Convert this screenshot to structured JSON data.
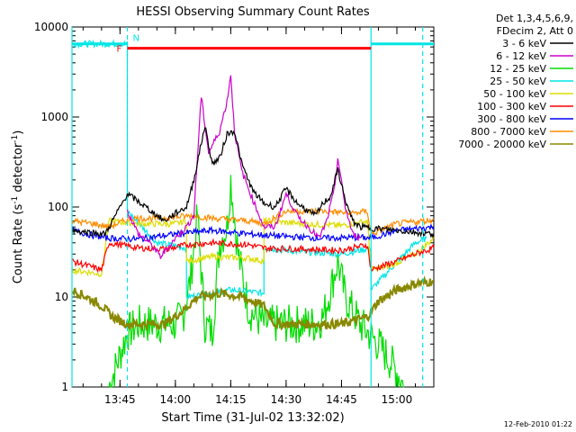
{
  "chart_data": {
    "type": "line",
    "title": "HESSI Observing Summary Count Rates",
    "xlabel": "Start Time (31-Jul-02 13:32:02)",
    "ylabel_main": "Count Rate (s",
    "ylabel_sup1": "-1",
    "ylabel_mid": " detector",
    "ylabel_sup2": "-1",
    "ylabel_end": ")",
    "y_scale": "log",
    "ylim": [
      1,
      10000
    ],
    "xlim": [
      "13:32",
      "15:10"
    ],
    "x_ticks": [
      {
        "t": "13:45",
        "label": "13:45"
      },
      {
        "t": "14:00",
        "label": "14:00"
      },
      {
        "t": "14:15",
        "label": "14:15"
      },
      {
        "t": "14:30",
        "label": "14:30"
      },
      {
        "t": "14:45",
        "label": "14:45"
      },
      {
        "t": "15:00",
        "label": "15:00"
      }
    ],
    "y_ticks": [
      {
        "v": 1,
        "label": "1"
      },
      {
        "v": 10,
        "label": "10"
      },
      {
        "v": 100,
        "label": "100"
      },
      {
        "v": 1000,
        "label": "1000"
      },
      {
        "v": 10000,
        "label": "10000"
      }
    ],
    "legend_header": [
      "Det 1,3,4,5,6,9,",
      "FDecim 2, Att 0"
    ],
    "legend_placement": "right",
    "series": [
      {
        "name": "3 - 6 keV",
        "color": "#000000",
        "points": [
          [
            "13:32",
            55
          ],
          [
            "13:41",
            50
          ],
          [
            "13:47",
            140
          ],
          [
            "13:52",
            100
          ],
          [
            "13:57",
            70
          ],
          [
            "14:00",
            85
          ],
          [
            "14:03",
            100
          ],
          [
            "14:05",
            200
          ],
          [
            "14:08",
            800
          ],
          [
            "14:10",
            300
          ],
          [
            "14:12",
            350
          ],
          [
            "14:14",
            650
          ],
          [
            "14:16",
            700
          ],
          [
            "14:18",
            300
          ],
          [
            "14:21",
            150
          ],
          [
            "14:24",
            110
          ],
          [
            "14:27",
            100
          ],
          [
            "14:30",
            160
          ],
          [
            "14:33",
            110
          ],
          [
            "14:36",
            90
          ],
          [
            "14:38",
            80
          ],
          [
            "14:40",
            110
          ],
          [
            "14:42",
            130
          ],
          [
            "14:44",
            260
          ],
          [
            "14:46",
            120
          ],
          [
            "14:48",
            70
          ],
          [
            "14:50",
            60
          ],
          [
            "15:00",
            55
          ],
          [
            "15:10",
            50
          ]
        ]
      },
      {
        "name": "6 - 12 keV",
        "color": "#cc00cc",
        "points": [
          [
            "13:47",
            90
          ],
          [
            "13:50",
            50
          ],
          [
            "13:53",
            40
          ],
          [
            "13:56",
            28
          ],
          [
            "14:00",
            45
          ],
          [
            "14:03",
            60
          ],
          [
            "14:05",
            80
          ],
          [
            "14:07",
            1700
          ],
          [
            "14:09",
            400
          ],
          [
            "14:12",
            700
          ],
          [
            "14:14",
            1500
          ],
          [
            "14:15",
            3000
          ],
          [
            "14:16",
            700
          ],
          [
            "14:18",
            250
          ],
          [
            "14:21",
            120
          ],
          [
            "14:24",
            60
          ],
          [
            "14:27",
            60
          ],
          [
            "14:30",
            140
          ],
          [
            "14:33",
            80
          ],
          [
            "14:36",
            60
          ],
          [
            "14:39",
            45
          ],
          [
            "14:41",
            70
          ],
          [
            "14:43",
            150
          ],
          [
            "14:44",
            350
          ],
          [
            "14:46",
            100
          ],
          [
            "14:48",
            50
          ],
          [
            "14:50",
            45
          ]
        ]
      },
      {
        "name": "12 - 25 keV",
        "color": "#00dd00",
        "points": [
          [
            "13:42",
            1
          ],
          [
            "13:47",
            4
          ],
          [
            "13:50",
            5
          ],
          [
            "14:00",
            5
          ],
          [
            "14:02",
            6
          ],
          [
            "14:04",
            15
          ],
          [
            "14:06",
            80
          ],
          [
            "14:08",
            5
          ],
          [
            "14:10",
            4
          ],
          [
            "14:12",
            40
          ],
          [
            "14:14",
            60
          ],
          [
            "14:15",
            200
          ],
          [
            "14:17",
            30
          ],
          [
            "14:20",
            7
          ],
          [
            "14:24",
            5
          ],
          [
            "14:30",
            5
          ],
          [
            "14:38",
            5
          ],
          [
            "14:40",
            6
          ],
          [
            "14:42",
            12
          ],
          [
            "14:44",
            25
          ],
          [
            "14:46",
            10
          ],
          [
            "14:50",
            5
          ],
          [
            "14:55",
            3
          ],
          [
            "15:00",
            1.5
          ],
          [
            "15:02",
            1
          ]
        ]
      },
      {
        "name": "25 - 50 keV",
        "color": "#00e6e6",
        "points": [
          [
            "13:32",
            6500
          ],
          [
            "13:47",
            6500
          ],
          [
            "13:47",
            90
          ],
          [
            "13:55",
            40
          ],
          [
            "14:03",
            35
          ],
          [
            "14:03",
            10
          ],
          [
            "14:10",
            11
          ],
          [
            "14:15",
            12
          ],
          [
            "14:24",
            11
          ],
          [
            "14:24",
            35
          ],
          [
            "14:33",
            32
          ],
          [
            "14:45",
            30
          ],
          [
            "14:53",
            35
          ],
          [
            "14:53",
            12
          ],
          [
            "14:58",
            20
          ],
          [
            "15:05",
            40
          ],
          [
            "15:08",
            45
          ]
        ]
      },
      {
        "name": "50 - 100 keV",
        "color": "#dddd00",
        "points": [
          [
            "13:32",
            20
          ],
          [
            "13:40",
            18
          ],
          [
            "13:42",
            70
          ],
          [
            "13:50",
            65
          ],
          [
            "14:00",
            65
          ],
          [
            "14:03",
            70
          ],
          [
            "14:03",
            25
          ],
          [
            "14:10",
            28
          ],
          [
            "14:20",
            27
          ],
          [
            "14:24",
            25
          ],
          [
            "14:24",
            70
          ],
          [
            "14:35",
            65
          ],
          [
            "14:45",
            62
          ],
          [
            "14:52",
            70
          ],
          [
            "14:53",
            20
          ],
          [
            "14:58",
            22
          ],
          [
            "15:05",
            30
          ],
          [
            "15:10",
            45
          ]
        ]
      },
      {
        "name": "100 - 300 keV",
        "color": "#ff0000",
        "points": [
          [
            "13:32",
            25
          ],
          [
            "13:40",
            20
          ],
          [
            "13:42",
            40
          ],
          [
            "13:50",
            35
          ],
          [
            "13:58",
            34
          ],
          [
            "14:03",
            38
          ],
          [
            "14:10",
            40
          ],
          [
            "14:20",
            38
          ],
          [
            "14:24",
            35
          ],
          [
            "14:35",
            34
          ],
          [
            "14:45",
            33
          ],
          [
            "14:52",
            38
          ],
          [
            "14:53",
            20
          ],
          [
            "15:00",
            25
          ],
          [
            "15:05",
            30
          ],
          [
            "15:10",
            35
          ]
        ]
      },
      {
        "name": "300 - 800 keV",
        "color": "#0000ff",
        "points": [
          [
            "13:32",
            55
          ],
          [
            "13:38",
            48
          ],
          [
            "13:42",
            45
          ],
          [
            "13:50",
            44
          ],
          [
            "14:00",
            50
          ],
          [
            "14:10",
            55
          ],
          [
            "14:20",
            50
          ],
          [
            "14:30",
            47
          ],
          [
            "14:40",
            45
          ],
          [
            "14:50",
            46
          ],
          [
            "14:53",
            45
          ],
          [
            "15:00",
            55
          ],
          [
            "15:10",
            60
          ]
        ]
      },
      {
        "name": "800 - 7000 keV",
        "color": "#ff8c00",
        "points": [
          [
            "13:32",
            70
          ],
          [
            "13:38",
            65
          ],
          [
            "13:42",
            60
          ],
          [
            "13:48",
            75
          ],
          [
            "13:55",
            75
          ],
          [
            "14:05",
            80
          ],
          [
            "14:10",
            75
          ],
          [
            "14:20",
            70
          ],
          [
            "14:24",
            65
          ],
          [
            "14:30",
            90
          ],
          [
            "14:40",
            90
          ],
          [
            "14:48",
            85
          ],
          [
            "14:52",
            90
          ],
          [
            "14:53",
            50
          ],
          [
            "15:00",
            65
          ],
          [
            "15:10",
            72
          ]
        ]
      },
      {
        "name": "7000 - 20000 keV",
        "color": "#888800",
        "points": [
          [
            "13:32",
            12
          ],
          [
            "13:36",
            10
          ],
          [
            "13:40",
            8
          ],
          [
            "13:43",
            6
          ],
          [
            "13:47",
            5
          ],
          [
            "13:57",
            5
          ],
          [
            "14:02",
            7
          ],
          [
            "14:06",
            10
          ],
          [
            "14:12",
            11
          ],
          [
            "14:18",
            10
          ],
          [
            "14:24",
            8
          ],
          [
            "14:27",
            5
          ],
          [
            "14:45",
            5
          ],
          [
            "14:52",
            6
          ],
          [
            "14:55",
            9
          ],
          [
            "15:00",
            12
          ],
          [
            "15:05",
            14
          ],
          [
            "15:10",
            15
          ]
        ]
      }
    ],
    "attenuator_bar": {
      "label": "F",
      "t_start": "13:47",
      "t_end": "14:53",
      "value": 5800,
      "color": "#ff0000"
    },
    "night_marker": {
      "label": "N",
      "t": "13:47",
      "color": "#00e6e6"
    },
    "cyan_vlines": [
      "13:32",
      "13:47",
      "14:53",
      "15:07"
    ]
  },
  "footer_date": "12-Feb-2010 01:22"
}
